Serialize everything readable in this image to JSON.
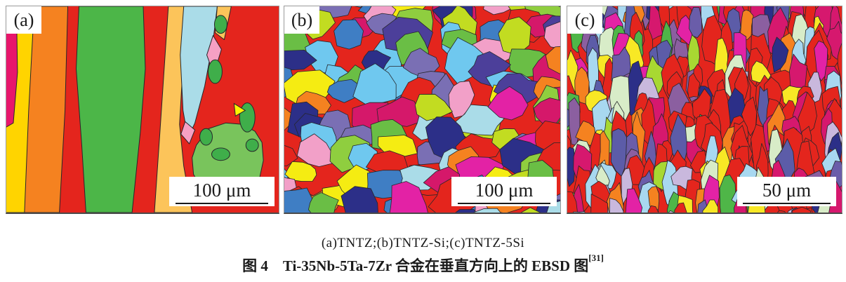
{
  "figure": {
    "panels": [
      {
        "label": "(a)",
        "scale_bar": "100 μm"
      },
      {
        "label": "(b)",
        "scale_bar": "100 μm"
      },
      {
        "label": "(c)",
        "scale_bar": "50 μm"
      }
    ],
    "subcaption": "(a)TNTZ;(b)TNTZ-Si;(c)TNTZ-5Si",
    "caption": "图 4　Ti-35Nb-5Ta-7Zr 合金在垂直方向上的 EBSD 图",
    "caption_reference": "[31]",
    "palette": {
      "red": "#e4251d",
      "boundary": "#26262a",
      "panel_a": {
        "yellow": "#ffd400",
        "orange": "#f58220",
        "magenta": "#e8166b",
        "green": "#4cb648",
        "pale_yellow": "#fcc45a",
        "cyan": "#aadce8",
        "pink": "#f6a0c4",
        "light_green": "#79c45c",
        "blob_green": "#3fae4a",
        "bright_yellow": "#fff200"
      },
      "panel_b": [
        "#e4251d",
        "#e4251d",
        "#d5186a",
        "#f5ec12",
        "#c2dc21",
        "#6abe45",
        "#8fce3f",
        "#2c2f88",
        "#3f7ec4",
        "#6fc8ef",
        "#4c3f9a",
        "#7a6fb4",
        "#e322a5",
        "#f2a0c8",
        "#f58220",
        "#aadce8"
      ],
      "panel_c": [
        "#e4251d",
        "#d6186e",
        "#8b5fa0",
        "#6a5da9",
        "#5c5ca8",
        "#4fb648",
        "#a8d832",
        "#f8e825",
        "#a8d8f0",
        "#d8ecc8",
        "#e322a5",
        "#f58220",
        "#2c2f88",
        "#c9b8dd"
      ]
    }
  }
}
